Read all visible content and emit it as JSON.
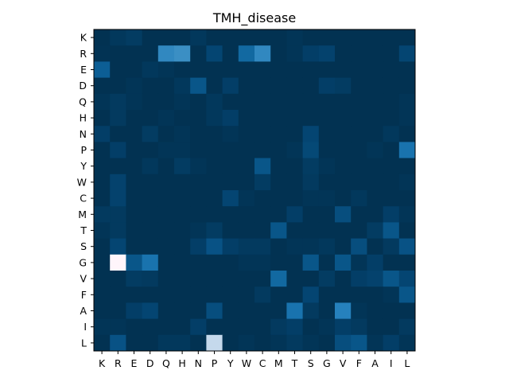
{
  "chart_data": {
    "type": "heatmap",
    "title": "TMH_disease",
    "xlabel": "",
    "ylabel": "",
    "x_categories": [
      "K",
      "R",
      "E",
      "D",
      "Q",
      "H",
      "N",
      "P",
      "Y",
      "W",
      "C",
      "M",
      "T",
      "S",
      "G",
      "V",
      "F",
      "A",
      "I",
      "L"
    ],
    "y_categories": [
      "K",
      "R",
      "E",
      "D",
      "Q",
      "H",
      "N",
      "P",
      "Y",
      "W",
      "C",
      "M",
      "T",
      "S",
      "G",
      "V",
      "F",
      "A",
      "I",
      "L"
    ],
    "value_range": [
      0,
      1
    ],
    "colormap": [
      "#02304f",
      "#03406a",
      "#0a5b91",
      "#1f7dba",
      "#5aa2cf",
      "#9fc6e2",
      "#fff5fb"
    ],
    "colormap_name": "PuBu_r",
    "values": [
      [
        0.02,
        0.08,
        0.12,
        0.02,
        0.02,
        0.02,
        0.08,
        0.02,
        0.02,
        0.02,
        0.02,
        0.02,
        0.05,
        0.02,
        0.02,
        0.02,
        0.02,
        0.02,
        0.02,
        0.02
      ],
      [
        0.03,
        0.02,
        0.02,
        0.02,
        0.55,
        0.58,
        0.02,
        0.2,
        0.02,
        0.4,
        0.55,
        0.02,
        0.05,
        0.15,
        0.18,
        0.02,
        0.02,
        0.02,
        0.02,
        0.2
      ],
      [
        0.35,
        0.02,
        0.02,
        0.08,
        0.05,
        0.02,
        0.02,
        0.02,
        0.02,
        0.02,
        0.02,
        0.02,
        0.02,
        0.02,
        0.02,
        0.02,
        0.02,
        0.02,
        0.02,
        0.02
      ],
      [
        0.02,
        0.02,
        0.05,
        0.02,
        0.02,
        0.08,
        0.3,
        0.02,
        0.15,
        0.02,
        0.02,
        0.02,
        0.02,
        0.02,
        0.15,
        0.12,
        0.02,
        0.02,
        0.02,
        0.02
      ],
      [
        0.05,
        0.1,
        0.05,
        0.02,
        0.02,
        0.05,
        0.02,
        0.08,
        0.02,
        0.02,
        0.02,
        0.02,
        0.02,
        0.02,
        0.02,
        0.02,
        0.02,
        0.02,
        0.02,
        0.05
      ],
      [
        0.02,
        0.1,
        0.02,
        0.02,
        0.05,
        0.02,
        0.02,
        0.08,
        0.15,
        0.02,
        0.02,
        0.02,
        0.02,
        0.02,
        0.02,
        0.02,
        0.02,
        0.02,
        0.02,
        0.05
      ],
      [
        0.15,
        0.02,
        0.02,
        0.12,
        0.02,
        0.05,
        0.02,
        0.02,
        0.05,
        0.02,
        0.02,
        0.02,
        0.02,
        0.2,
        0.02,
        0.02,
        0.02,
        0.02,
        0.08,
        0.02
      ],
      [
        0.02,
        0.15,
        0.02,
        0.02,
        0.05,
        0.05,
        0.02,
        0.02,
        0.02,
        0.02,
        0.02,
        0.02,
        0.05,
        0.22,
        0.02,
        0.02,
        0.02,
        0.05,
        0.02,
        0.45
      ],
      [
        0.02,
        0.02,
        0.02,
        0.08,
        0.02,
        0.12,
        0.05,
        0.02,
        0.02,
        0.02,
        0.3,
        0.02,
        0.02,
        0.12,
        0.05,
        0.02,
        0.02,
        0.02,
        0.02,
        0.02
      ],
      [
        0.02,
        0.18,
        0.02,
        0.02,
        0.02,
        0.02,
        0.02,
        0.02,
        0.02,
        0.02,
        0.12,
        0.02,
        0.02,
        0.1,
        0.02,
        0.02,
        0.02,
        0.02,
        0.02,
        0.05
      ],
      [
        0.02,
        0.18,
        0.02,
        0.02,
        0.02,
        0.02,
        0.02,
        0.02,
        0.2,
        0.05,
        0.02,
        0.02,
        0.02,
        0.05,
        0.05,
        0.02,
        0.08,
        0.02,
        0.02,
        0.02
      ],
      [
        0.1,
        0.1,
        0.02,
        0.02,
        0.02,
        0.02,
        0.02,
        0.02,
        0.02,
        0.02,
        0.02,
        0.02,
        0.15,
        0.02,
        0.02,
        0.25,
        0.02,
        0.02,
        0.15,
        0.05
      ],
      [
        0.05,
        0.1,
        0.02,
        0.02,
        0.02,
        0.02,
        0.05,
        0.12,
        0.02,
        0.02,
        0.02,
        0.3,
        0.02,
        0.02,
        0.02,
        0.02,
        0.02,
        0.12,
        0.3,
        0.02
      ],
      [
        0.02,
        0.2,
        0.02,
        0.02,
        0.02,
        0.02,
        0.15,
        0.28,
        0.15,
        0.1,
        0.1,
        0.02,
        0.05,
        0.05,
        0.08,
        0.02,
        0.25,
        0.02,
        0.1,
        0.28
      ],
      [
        0.02,
        1.0,
        0.3,
        0.45,
        0.02,
        0.02,
        0.02,
        0.02,
        0.02,
        0.05,
        0.05,
        0.02,
        0.02,
        0.3,
        0.02,
        0.3,
        0.05,
        0.15,
        0.02,
        0.02
      ],
      [
        0.02,
        0.02,
        0.12,
        0.1,
        0.02,
        0.02,
        0.02,
        0.02,
        0.02,
        0.02,
        0.02,
        0.4,
        0.02,
        0.02,
        0.12,
        0.02,
        0.15,
        0.18,
        0.3,
        0.2
      ],
      [
        0.02,
        0.02,
        0.02,
        0.02,
        0.02,
        0.02,
        0.02,
        0.02,
        0.02,
        0.02,
        0.1,
        0.02,
        0.02,
        0.2,
        0.02,
        0.02,
        0.02,
        0.02,
        0.05,
        0.3
      ],
      [
        0.02,
        0.02,
        0.15,
        0.2,
        0.02,
        0.02,
        0.02,
        0.25,
        0.02,
        0.02,
        0.02,
        0.02,
        0.45,
        0.1,
        0.02,
        0.52,
        0.05,
        0.02,
        0.02,
        0.02
      ],
      [
        0.05,
        0.05,
        0.02,
        0.02,
        0.02,
        0.02,
        0.15,
        0.02,
        0.02,
        0.02,
        0.02,
        0.1,
        0.15,
        0.02,
        0.05,
        0.15,
        0.1,
        0.02,
        0.02,
        0.1
      ],
      [
        0.02,
        0.28,
        0.02,
        0.02,
        0.08,
        0.08,
        0.02,
        0.9,
        0.02,
        0.05,
        0.02,
        0.05,
        0.1,
        0.05,
        0.02,
        0.25,
        0.3,
        0.05,
        0.15,
        0.05
      ]
    ],
    "grid": false,
    "legend": "none"
  }
}
